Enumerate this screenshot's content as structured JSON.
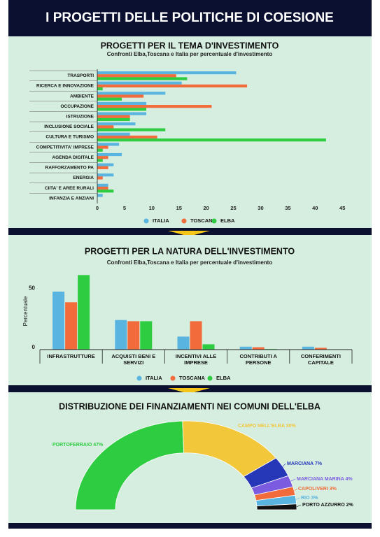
{
  "header": {
    "title": "I PROGETTI DELLE POLITICHE DI COESIONE"
  },
  "chart_data": [
    {
      "type": "hbar",
      "title": "PROGETTI PER IL TEMA D'INVESTIMENTO",
      "subtitle": "Confronti Elba,Toscana e Italia per percentuale d'investimento",
      "categories": [
        "TRASPORTI",
        "RICERCA E INNOVAZIONE",
        "AMBIENTE",
        "OCCUPAZIONE",
        "ISTRUZIONE",
        "INCLUSIONE SOCIALE",
        "CULTURA E TURISMO",
        "COMPETITIVITA' IMPRESE",
        "AGENDA DIGITALE",
        "RAFFORZAMENTO PA",
        "ENERGIA",
        "CIITA' E AREE RURALI",
        "INFANZIA E ANZIANI"
      ],
      "series": [
        {
          "name": "ITALIA",
          "color": "#5ab4e0",
          "values": [
            25.5,
            15.5,
            12.5,
            9,
            9,
            7,
            6,
            4,
            4.5,
            3,
            3,
            2,
            1
          ]
        },
        {
          "name": "TOSCANA",
          "color": "#f26b3a",
          "values": [
            14.5,
            27.5,
            8.5,
            21,
            6,
            3,
            11,
            2,
            2,
            2,
            1,
            2,
            0
          ]
        },
        {
          "name": "ELBA",
          "color": "#2ecc40",
          "values": [
            16.5,
            1,
            4.5,
            9,
            6,
            12.5,
            42,
            1,
            1,
            0,
            0,
            3,
            0
          ]
        }
      ],
      "xlim": [
        0,
        46
      ],
      "xticks": [
        0,
        5,
        10,
        15,
        20,
        25,
        30,
        35,
        40,
        45
      ],
      "legend": "bottom"
    },
    {
      "type": "bar",
      "title": "PROGETTI PER LA NATURA DELL'INVESTIMENTO",
      "subtitle": "Confronti Elba,Toscana e Italia per percentuale d'investimento",
      "y_label": "Percentuale",
      "categories": [
        "INFRASTRUTTURE",
        "ACQUISTI BENI E SERVIZI",
        "INCENTIVI ALLE IMPRESE",
        "CONTRIBUTI A PERSONE",
        "CONFERIMENTI CAPITALE"
      ],
      "series": [
        {
          "name": "ITALIA",
          "color": "#5ab4e0",
          "values": [
            49,
            25,
            11,
            2.5,
            2.5
          ]
        },
        {
          "name": "TOSCANA",
          "color": "#f26b3a",
          "values": [
            40,
            24,
            24,
            2,
            1.5
          ]
        },
        {
          "name": "ELBA",
          "color": "#2ecc40",
          "values": [
            63,
            24,
            4.5,
            0.5,
            0
          ]
        }
      ],
      "ylim": [
        0,
        65
      ],
      "yticks": [
        0,
        50
      ],
      "legend": "bottom"
    },
    {
      "type": "pie",
      "title": "DISTRIBUZIONE DEI FINANZIAMENTI NEI COMUNI DELL'ELBA",
      "categories": [
        "PORTOFERRAIO",
        "CAMPO NELL'ELBA",
        "MARCIANA",
        "MARCIANA MARINA",
        "CAPOLIVERI",
        "RIO",
        "PORTO AZZURRO"
      ],
      "values": [
        47,
        30,
        7,
        4,
        3,
        3,
        2
      ],
      "value_labels": [
        "47%",
        "30%",
        "7%",
        "4%",
        "3%",
        "3%",
        "2%"
      ],
      "colors": [
        "#2ecc40",
        "#f2c73a",
        "#2638b8",
        "#7b5ce0",
        "#f26b3a",
        "#5ab4e0",
        "#111111"
      ]
    }
  ]
}
